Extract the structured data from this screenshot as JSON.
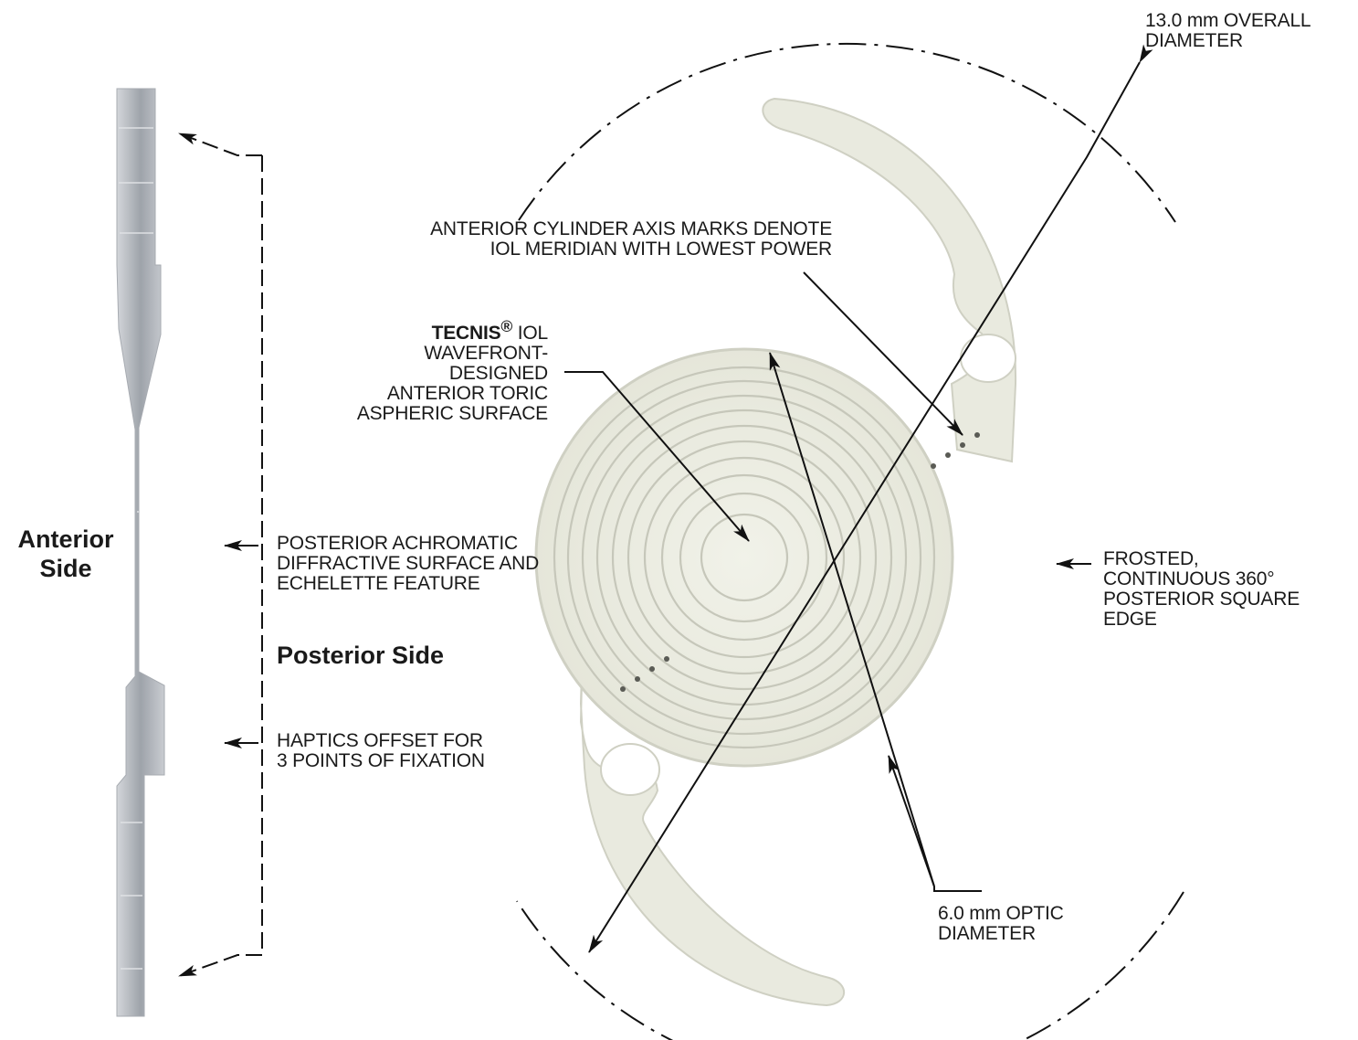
{
  "colors": {
    "line": "#111111",
    "lens_fill": "#ecede2",
    "lens_edge": "#c9cabd",
    "ring": "#c4c5b8",
    "side_profile": "#b9bec4"
  },
  "labels": {
    "overall_diameter": [
      "13.0 mm OVERALL",
      "DIAMETER"
    ],
    "cylinder_axis_marks": [
      "ANTERIOR CYLINDER AXIS MARKS DENOTE",
      "IOL MERIDIAN WITH LOWEST POWER"
    ],
    "anterior_surface": {
      "brand": "TECNIS",
      "registered_mark": "®",
      "first_line_rest": " IOL",
      "lines": [
        "WAVEFRONT-",
        "DESIGNED",
        "ANTERIOR TORIC",
        "ASPHERIC SURFACE"
      ]
    },
    "anterior_side": [
      "Anterior",
      "Side"
    ],
    "posterior_surface": [
      "POSTERIOR ACHROMATIC",
      "DIFFRACTIVE SURFACE AND",
      "ECHELETTE FEATURE"
    ],
    "posterior_side": "Posterior Side",
    "haptics_offset": [
      "HAPTICS OFFSET FOR",
      "3 POINTS OF FIXATION"
    ],
    "square_edge": [
      "FROSTED,",
      "CONTINUOUS 360°",
      "POSTERIOR SQUARE",
      "EDGE"
    ],
    "optic_diameter": [
      "6.0 mm OPTIC",
      "DIAMETER"
    ]
  },
  "icons": {
    "arrowhead": "arrowhead-icon",
    "axis_mark": "axis-mark-dot-icon"
  }
}
